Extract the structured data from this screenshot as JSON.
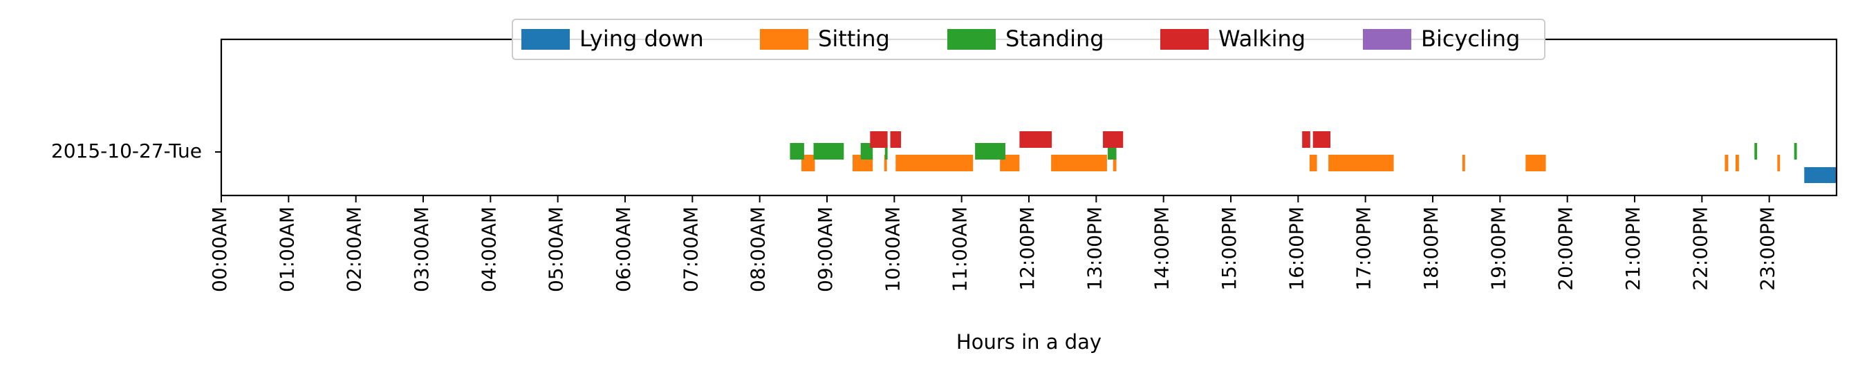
{
  "chart_data": {
    "type": "timeline",
    "title": "",
    "xlabel": "Hours in a day",
    "ylabel": "",
    "xlim": [
      0,
      24
    ],
    "y_categories": [
      "2015-10-27-Tue"
    ],
    "x_tick_labels": [
      "00:00AM",
      "01:00AM",
      "02:00AM",
      "03:00AM",
      "04:00AM",
      "05:00AM",
      "06:00AM",
      "07:00AM",
      "08:00AM",
      "09:00AM",
      "10:00AM",
      "11:00AM",
      "12:00PM",
      "13:00PM",
      "14:00PM",
      "15:00PM",
      "16:00PM",
      "17:00PM",
      "18:00PM",
      "19:00PM",
      "20:00PM",
      "21:00PM",
      "22:00PM",
      "23:00PM"
    ],
    "legend_placement": "top-center",
    "grid": false,
    "series": [
      {
        "name": "Lying down",
        "color": "#1f77b4",
        "intervals": [
          [
            23.52,
            24.0
          ]
        ]
      },
      {
        "name": "Sitting",
        "color": "#ff7f0e",
        "intervals": [
          [
            8.62,
            8.82
          ],
          [
            9.38,
            9.68
          ],
          [
            9.85,
            9.89
          ],
          [
            10.02,
            11.17
          ],
          [
            11.57,
            11.86
          ],
          [
            12.33,
            13.16
          ],
          [
            13.25,
            13.3
          ],
          [
            16.17,
            16.28
          ],
          [
            16.45,
            17.42
          ],
          [
            18.44,
            18.48
          ],
          [
            19.38,
            19.68
          ],
          [
            22.34,
            22.39
          ],
          [
            22.5,
            22.55
          ],
          [
            23.12,
            23.16
          ]
        ]
      },
      {
        "name": "Standing",
        "color": "#2ca02c",
        "intervals": [
          [
            8.45,
            8.66
          ],
          [
            8.8,
            9.25
          ],
          [
            9.5,
            9.68
          ],
          [
            9.86,
            9.9
          ],
          [
            11.2,
            11.65
          ],
          [
            13.17,
            13.3
          ],
          [
            22.78,
            22.82
          ],
          [
            23.37,
            23.41
          ]
        ]
      },
      {
        "name": "Walking",
        "color": "#d62728",
        "intervals": [
          [
            9.64,
            9.9
          ],
          [
            9.94,
            10.1
          ],
          [
            11.86,
            12.34
          ],
          [
            13.1,
            13.4
          ],
          [
            16.06,
            16.18
          ],
          [
            16.22,
            16.48
          ]
        ]
      },
      {
        "name": "Bicycling",
        "color": "#9467bd",
        "intervals": []
      }
    ]
  }
}
